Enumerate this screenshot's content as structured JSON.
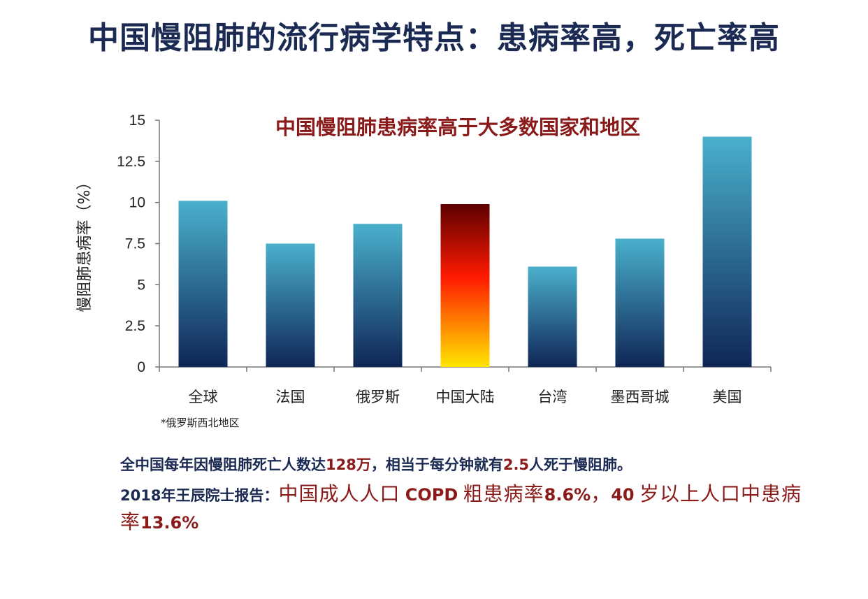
{
  "slide": {
    "title": "中国慢阻肺的流行病学特点：患病率高，死亡率高"
  },
  "chart_data": {
    "type": "bar",
    "title": "中国慢阻肺患病率高于大多数国家和地区",
    "ylabel": "慢阻肺患病率（%）",
    "xlabel": "",
    "categories": [
      "全球",
      "法国",
      "俄罗斯",
      "中国大陆",
      "台湾",
      "墨西哥城",
      "美国"
    ],
    "values": [
      10.1,
      7.5,
      8.7,
      9.9,
      6.1,
      7.8,
      14.0
    ],
    "highlight_index": 3,
    "ylim": [
      0,
      15
    ],
    "yticks": [
      "0",
      "2.5",
      "5",
      "7.5",
      "10",
      "12.5",
      "15"
    ],
    "ytick_values": [
      0,
      2.5,
      5,
      7.5,
      10,
      12.5,
      15
    ],
    "grid": false,
    "colors": {
      "bar_top": "#4ab0cc",
      "bar_bottom": "#0f2656",
      "highlight_top": "#5c0000",
      "highlight_mid": "#ff1a00",
      "highlight_bottom": "#ffe600"
    },
    "footnote": "*俄罗斯西北地区"
  },
  "summary": {
    "line1_a": "全中国每年因慢阻肺死亡人数达",
    "line1_b": "128万",
    "line1_c": "，相当于每分钟就有",
    "line1_d": "2.5",
    "line1_e": "人死于慢阻肺。",
    "line2_a": "2018年王辰院士报告：",
    "line2_b": "中国成人人口",
    "line2_c": "COPD",
    "line2_d": "粗患病率",
    "line2_e": "8.6%",
    "line2_f": "，",
    "line2_g": "40",
    "line2_h": "岁以上人口中患病率",
    "line2_i": "13.6%"
  }
}
